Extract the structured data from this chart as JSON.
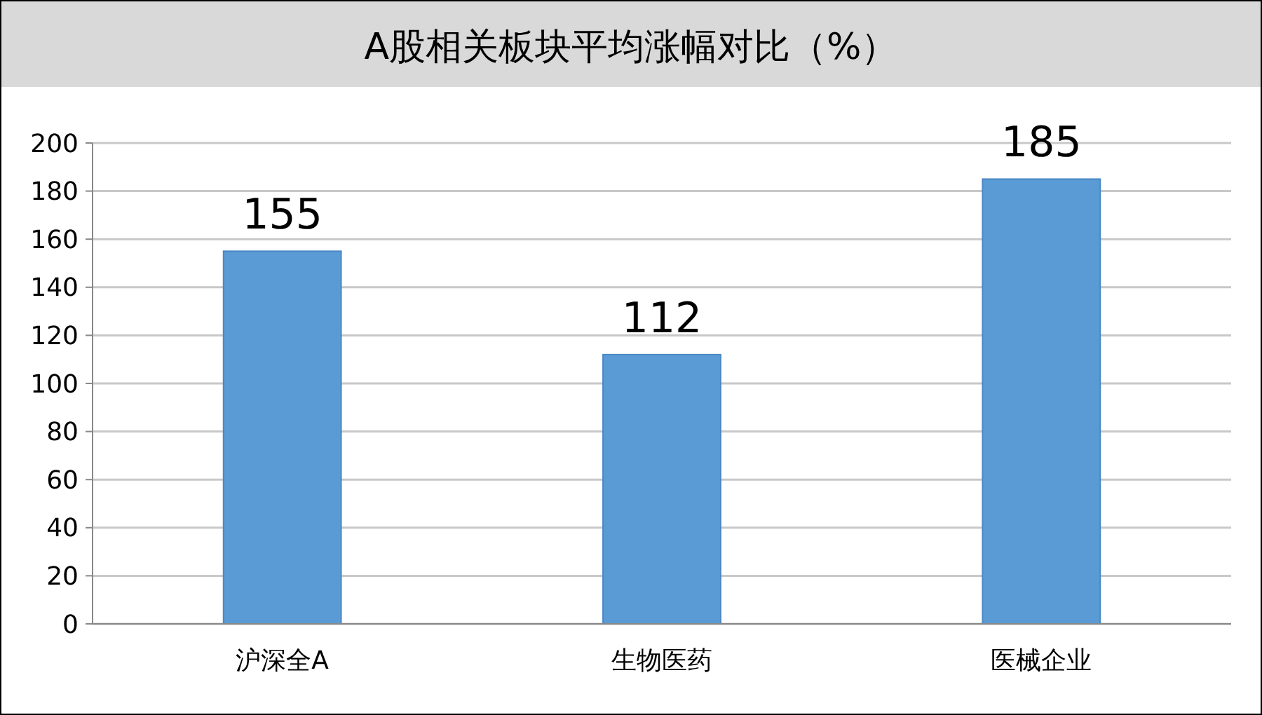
{
  "chart_data": {
    "type": "bar",
    "title": "A股相关板块平均涨幅对比（%）",
    "categories": [
      "沪深全A",
      "生物医药",
      "医械企业"
    ],
    "values": [
      155,
      112,
      185
    ],
    "color": "#5b9bd5",
    "ylim": [
      0,
      200
    ],
    "yticks": [
      0,
      20,
      40,
      60,
      80,
      100,
      120,
      140,
      160,
      180,
      200
    ],
    "grid": "y",
    "data_labels": true
  }
}
